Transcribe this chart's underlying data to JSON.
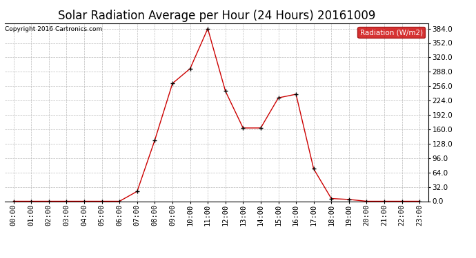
{
  "title": "Solar Radiation Average per Hour (24 Hours) 20161009",
  "copyright_text": "Copyright 2016 Cartronics.com",
  "legend_label": "Radiation (W/m2)",
  "hours": [
    "00:00",
    "01:00",
    "02:00",
    "03:00",
    "04:00",
    "05:00",
    "06:00",
    "07:00",
    "08:00",
    "09:00",
    "10:00",
    "11:00",
    "12:00",
    "13:00",
    "14:00",
    "15:00",
    "16:00",
    "17:00",
    "18:00",
    "19:00",
    "20:00",
    "21:00",
    "22:00",
    "23:00"
  ],
  "values": [
    0.0,
    0.0,
    0.0,
    0.0,
    0.0,
    0.0,
    0.0,
    22.0,
    136.0,
    262.0,
    295.0,
    384.0,
    245.0,
    163.0,
    163.0,
    230.0,
    238.0,
    72.0,
    6.0,
    4.0,
    0.0,
    0.0,
    0.0,
    0.0
  ],
  "line_color": "#cc0000",
  "marker_color": "black",
  "bg_color": "#ffffff",
  "plot_bg_color": "#ffffff",
  "grid_color": "#bbbbbb",
  "ylim": [
    0.0,
    396.0
  ],
  "ytick_min": 0.0,
  "ytick_max": 384.0,
  "ytick_step": 32.0,
  "yticks": [
    0.0,
    32.0,
    64.0,
    96.0,
    128.0,
    160.0,
    192.0,
    224.0,
    256.0,
    288.0,
    320.0,
    352.0,
    384.0
  ],
  "title_fontsize": 12,
  "tick_fontsize": 7.5,
  "legend_bg": "#cc0000",
  "legend_text_color": "#ffffff"
}
